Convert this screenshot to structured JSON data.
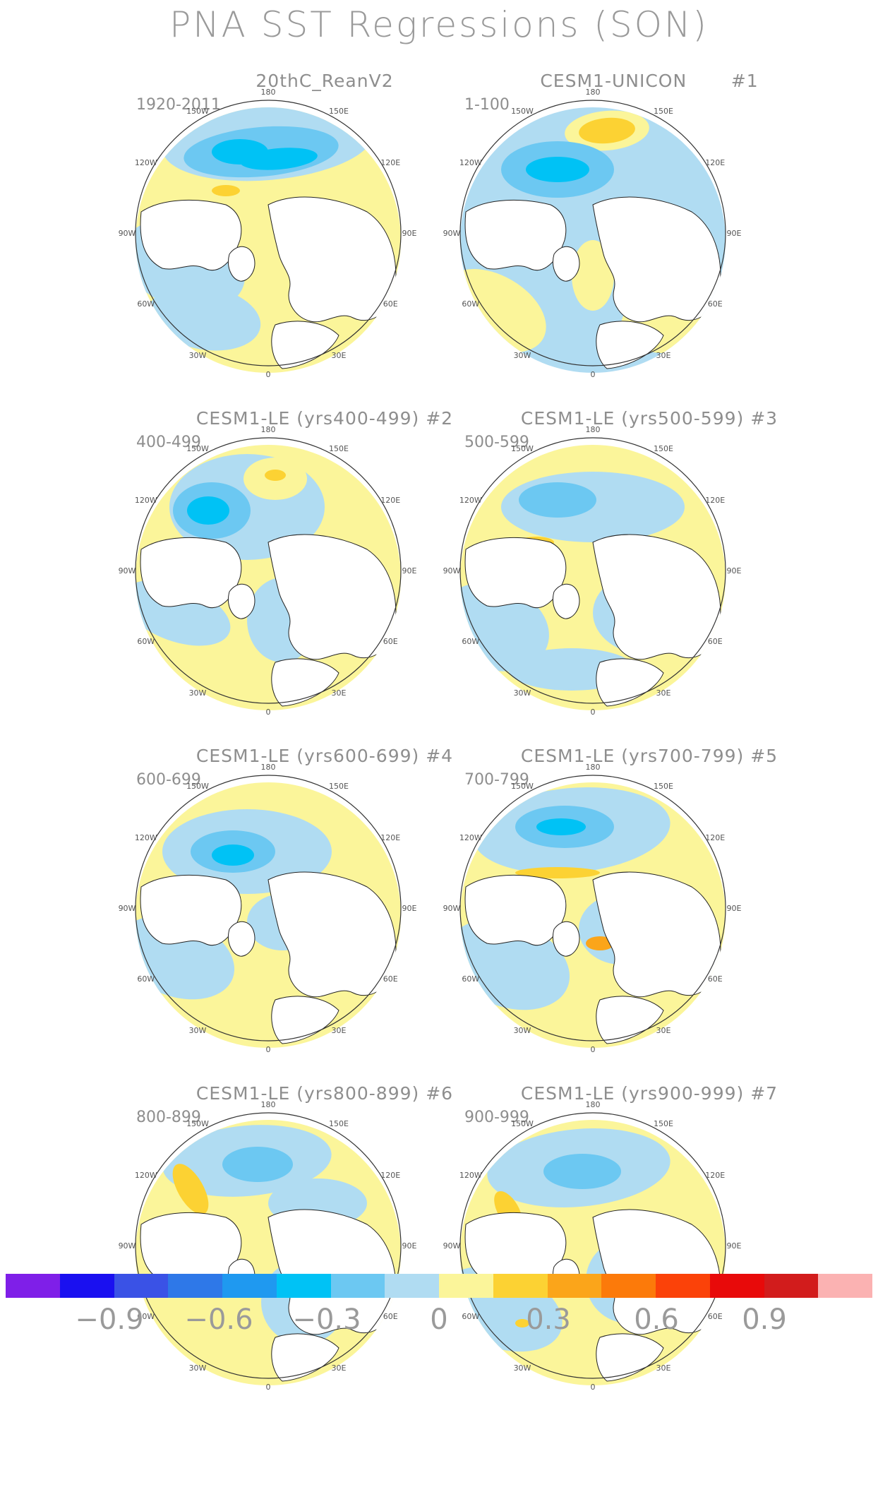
{
  "title": "PNA SST Regressions (SON)",
  "colors": {
    "neg09": "#7f1fe8",
    "neg08": "#1a10f0",
    "neg07": "#3a52e6",
    "neg06": "#2e78e8",
    "neg05": "#1f99f0",
    "neg04": "#00c2f5",
    "neg03": "#6cc8f2",
    "neg015": "#b0dcf2",
    "pos015": "#fbf59a",
    "pos03": "#fcd233",
    "pos04": "#fba51a",
    "pos05": "#fc7a0a",
    "pos06": "#fb4209",
    "pos07": "#e80a0a",
    "pos08": "#d21c1c",
    "pos09": "#fbb2b2",
    "land": "#ffffff",
    "coast": "#222222"
  },
  "longitude_labels": [
    "180",
    "150E",
    "120E",
    "90E",
    "60E",
    "30E",
    "0",
    "30W",
    "60W",
    "90W",
    "120W",
    "150W"
  ],
  "panels": [
    {
      "title": "20thC_ReanV2",
      "years": "1920-2011"
    },
    {
      "title": "CESM1-UNICON       #1",
      "years": "1-100"
    },
    {
      "title": "CESM1-LE (yrs400-499) #2",
      "years": "400-499"
    },
    {
      "title": "CESM1-LE (yrs500-599) #3",
      "years": "500-599"
    },
    {
      "title": "CESM1-LE (yrs600-699) #4",
      "years": "600-699"
    },
    {
      "title": "CESM1-LE (yrs700-799) #5",
      "years": "700-799"
    },
    {
      "title": "CESM1-LE (yrs800-899) #6",
      "years": "800-899"
    },
    {
      "title": "CESM1-LE (yrs900-999) #7",
      "years": "900-999"
    }
  ],
  "colorbar": {
    "colors": [
      "#7f1fe8",
      "#1a10f0",
      "#3a52e6",
      "#2e78e8",
      "#1f99f0",
      "#00c2f5",
      "#6cc8f2",
      "#b0dcf2",
      "#fbf59a",
      "#fcd233",
      "#fba51a",
      "#fc7a0a",
      "#fb4209",
      "#e80a0a",
      "#d21c1c",
      "#fbb2b2"
    ],
    "labels": [
      "−0.9",
      "−0.6",
      "−0.3",
      "0",
      "0.3",
      "0.6",
      "0.9"
    ]
  }
}
